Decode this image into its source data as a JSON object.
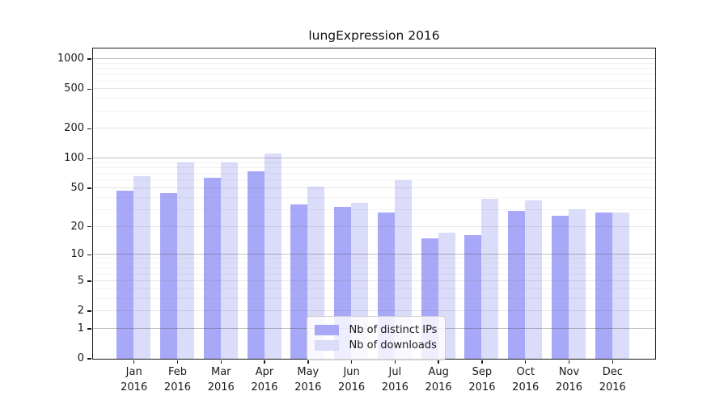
{
  "title": "lungExpression 2016",
  "legend": {
    "items": [
      {
        "label": "Nb of distinct IPs",
        "series": "ips"
      },
      {
        "label": "Nb of downloads",
        "series": "downloads"
      }
    ]
  },
  "colors": {
    "ips": "#a8a8f8",
    "downloads": "#dbdbfa",
    "axis": "#1a1a1a",
    "grid_major": "#c2c2c2",
    "grid_minor": "#ececec"
  },
  "y_axis": {
    "tick_labels": [
      "0",
      "1",
      "2",
      "5",
      "10",
      "20",
      "50",
      "100",
      "200",
      "500",
      "1000"
    ],
    "tick_values": [
      0,
      1,
      2,
      5,
      10,
      20,
      50,
      100,
      200,
      500,
      1000
    ]
  },
  "chart_data": {
    "type": "bar",
    "title": "lungExpression 2016",
    "categories": [
      "Jan 2016",
      "Feb 2016",
      "Mar 2016",
      "Apr 2016",
      "May 2016",
      "Jun 2016",
      "Jul 2016",
      "Aug 2016",
      "Sep 2016",
      "Oct 2016",
      "Nov 2016",
      "Dec 2016"
    ],
    "series": [
      {
        "name": "Nb of distinct IPs",
        "color": "#a8a8f8",
        "values": [
          47,
          44,
          63,
          74,
          34,
          32,
          28,
          15,
          16,
          29,
          26,
          28
        ]
      },
      {
        "name": "Nb of downloads",
        "color": "#dbdbfa",
        "values": [
          66,
          90,
          91,
          112,
          51,
          35,
          60,
          17,
          39,
          37,
          30,
          28
        ]
      }
    ],
    "xlabel": "",
    "ylabel": "",
    "yscale": "log1p",
    "yticks": [
      0,
      1,
      2,
      5,
      10,
      20,
      50,
      100,
      200,
      500,
      1000
    ],
    "ylim": [
      0,
      1270
    ],
    "grid": "on",
    "legend_position": "lower center"
  }
}
